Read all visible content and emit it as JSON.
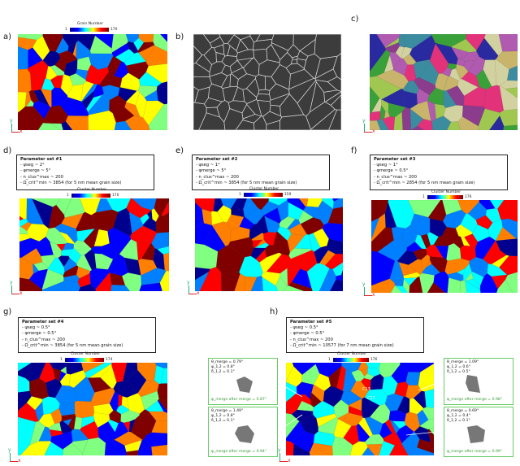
{
  "panels": {
    "a": {
      "label": "a)",
      "cbar_title": "Grain Number",
      "cbar_min": "1",
      "cbar_max": "170"
    },
    "b": {
      "label": "b)"
    },
    "c": {
      "label": "c)"
    },
    "d": {
      "label": "d)",
      "cbar_title": "Cluster Number",
      "cbar_min": "1",
      "cbar_max": "170",
      "param_title": "Parameter set #1",
      "lines": [
        "- ψseg ~ 2°",
        "- φmerge ~ 5°",
        "- n_clus^max ~ 200",
        "- Ω_crit^min ~ 3854 (for 5 nm mean grain size)"
      ]
    },
    "e": {
      "label": "e)",
      "cbar_title": "Cluster Number",
      "cbar_min": "1",
      "cbar_max": "159",
      "param_title": "Parameter set #2",
      "lines": [
        "- ψseg ~ 1°",
        "- φmerge ~ 5°",
        "- n_clus^max ~ 200",
        "- Ω_crit^min ~ 3854 (for 5 nm mean grain size)"
      ]
    },
    "f": {
      "label": "f)",
      "cbar_title": "Cluster Number",
      "cbar_min": "1",
      "cbar_max": "176",
      "param_title": "Parameter set #3",
      "lines": [
        "- ψseg ~ 1°",
        "- φmerge ~ 0.5°",
        "- n_clus^max ~ 200",
        "- Ω_crit^min ~ 2854 (for 5 nm mean grain size)"
      ]
    },
    "g": {
      "label": "g)",
      "cbar_title": "Cluster Number",
      "cbar_min": "1",
      "cbar_max": "174",
      "param_title": "Parameter set #4",
      "lines": [
        "- ψseg ~ 0.5°",
        "- φmerge ~ 0.5°",
        "- n_clus^max ~ 200",
        "- Ω_crit^min ~ 3854 (for 5 nm mean grain size)"
      ]
    },
    "h": {
      "label": "h)",
      "cbar_title": "Cluster Number",
      "cbar_min": "1",
      "cbar_max": "176",
      "param_title": "Parameter set #5",
      "lines": [
        "- ψseg ~ 0.5°",
        "- φmerge ~ 0.5°",
        "- n_clus^max ~ 200",
        "- Ω_crit^min ~ 10577 (for 7 nm mean grain size)"
      ]
    }
  },
  "axes": {
    "y": "y",
    "x": "x"
  },
  "insets": [
    {
      "l1": "θ_merge = 0.79°",
      "l2": "ψ_1,2 = 0.8°",
      "l3": "δ_1,2 = 0.1°",
      "merge": "φ_merge after merge = 0.87°"
    },
    {
      "l1": "θ_merge = 1.49°",
      "l2": "ψ_1,2 = 0.8°",
      "l3": "δ_1,2 = 0.1°",
      "merge": "φ_merge after merge = 0.94°"
    },
    {
      "l1": "θ_merge = 1.09°",
      "l2": "ψ_1,2 = 0.6°",
      "l3": "δ_1,2 = 0.5°",
      "merge": "φ_merge after merge = 0.98°"
    },
    {
      "l1": "θ_merge = 0.69°",
      "l2": "ψ_1,2 = 0.4°",
      "l3": "δ_1,2 = 0.1°",
      "merge": "φ_merge after merge = 0.99°"
    }
  ],
  "cluster_labels": {
    "a": "C13",
    "b": "C17"
  },
  "colors": {
    "jet": [
      "#00008f",
      "#0000ff",
      "#0080ff",
      "#00ffff",
      "#80ff80",
      "#ffff00",
      "#ff8000",
      "#ff0000",
      "#800000"
    ],
    "ipf": [
      "#e2327a",
      "#3aa03a",
      "#2a2aa0",
      "#c8b46a",
      "#b05ab0",
      "#3c8ca0",
      "#a0c850",
      "#8c3c8c",
      "#d2d2a0"
    ]
  }
}
